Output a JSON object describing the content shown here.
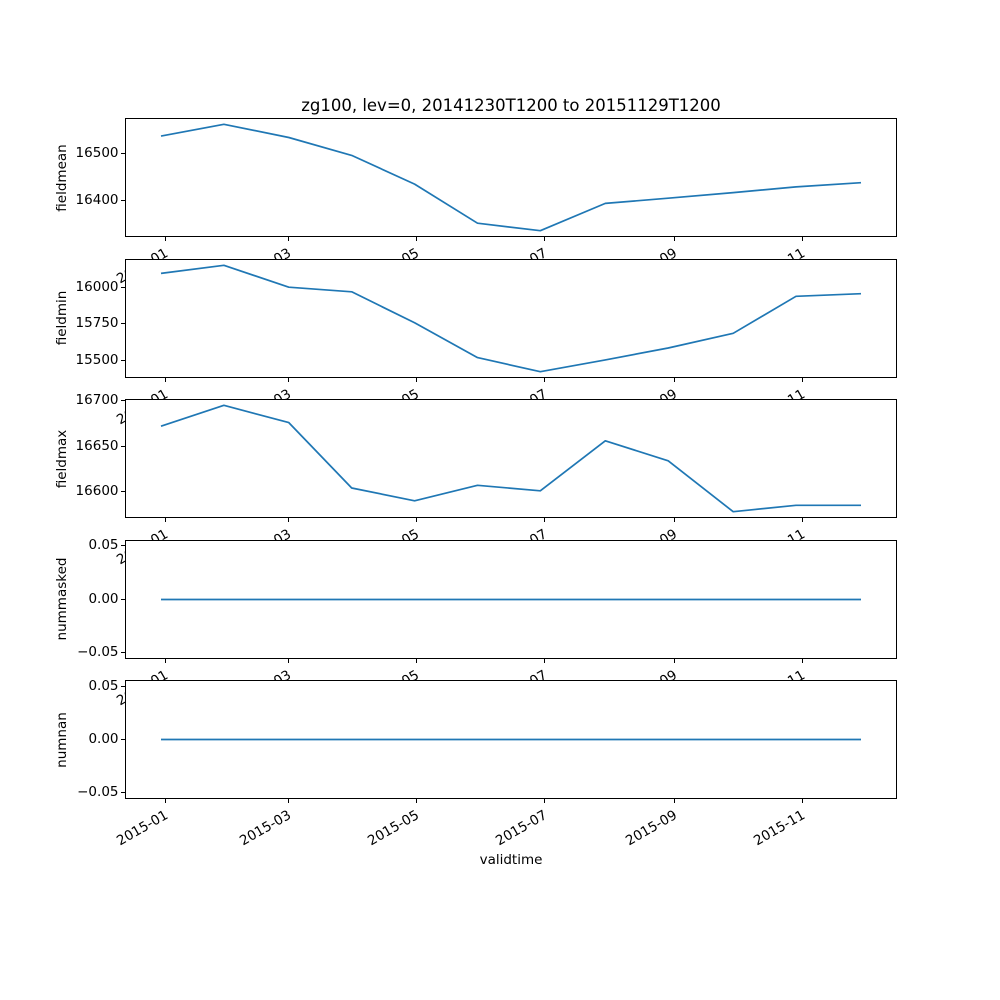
{
  "title": "zg100, lev=0, 20141230T1200 to 20151129T1200",
  "xlabel": "validtime",
  "line_color": "#1f77b4",
  "chart_data": {
    "type": "line",
    "x_axis_name": "validtime",
    "x_dates": [
      "2014-12-30",
      "2015-01-29",
      "2015-03-01",
      "2015-03-31",
      "2015-04-30",
      "2015-05-30",
      "2015-06-29",
      "2015-07-30",
      "2015-08-29",
      "2015-09-29",
      "2015-10-29",
      "2015-11-29"
    ],
    "x_tick_dates": [
      "2015-01-01",
      "2015-03-01",
      "2015-05-01",
      "2015-07-01",
      "2015-09-01",
      "2015-11-01"
    ],
    "x_tick_labels": [
      "2015-01",
      "2015-03",
      "2015-05",
      "2015-07",
      "2015-09",
      "2015-11"
    ],
    "x_margin": 0.05,
    "y_margin": 0.05,
    "grid": false,
    "legend": "none",
    "subplots": [
      {
        "ylabel": "fieldmean",
        "yticks": [
          16400,
          16500
        ],
        "ytick_labels": [
          "16400",
          "16500"
        ],
        "values": [
          16537,
          16562,
          16534,
          16496,
          16435,
          16352,
          16336,
          16394,
          16405,
          16417,
          16429,
          16438
        ]
      },
      {
        "ylabel": "fieldmin",
        "yticks": [
          15500,
          15750,
          16000
        ],
        "ytick_labels": [
          "15500",
          "15750",
          "16000"
        ],
        "values": [
          16095,
          16150,
          16002,
          15971,
          15761,
          15525,
          15430,
          15510,
          15590,
          15690,
          15940,
          15958
        ]
      },
      {
        "ylabel": "fieldmax",
        "yticks": [
          16600,
          16650,
          16700
        ],
        "ytick_labels": [
          "16600",
          "16650",
          "16700"
        ],
        "values": [
          16672,
          16695,
          16676,
          16604,
          16590,
          16607,
          16601,
          16656,
          16634,
          16578,
          16585,
          16585
        ]
      },
      {
        "ylabel": "nummasked",
        "yticks": [
          -0.05,
          0,
          0.05
        ],
        "ytick_labels": [
          "−0.05",
          "0.00",
          "0.05"
        ],
        "values": [
          0,
          0,
          0,
          0,
          0,
          0,
          0,
          0,
          0,
          0,
          0,
          0
        ]
      },
      {
        "ylabel": "numnan",
        "yticks": [
          -0.05,
          0,
          0.05
        ],
        "ytick_labels": [
          "−0.05",
          "0.00",
          "0.05"
        ],
        "values": [
          0,
          0,
          0,
          0,
          0,
          0,
          0,
          0,
          0,
          0,
          0,
          0
        ]
      }
    ]
  }
}
